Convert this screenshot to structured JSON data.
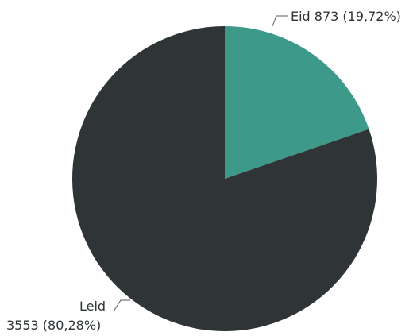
{
  "chart_data": {
    "type": "pie",
    "title": "",
    "slices": [
      {
        "label": "Eid",
        "value": 873,
        "percent_label": "19,72%",
        "display_text": "Eid 873 (19,72%)",
        "color": "#3d9a8b"
      },
      {
        "label": "Leid",
        "value": 3553,
        "percent_label": "80,28%",
        "display_line1": "Leid",
        "display_line2": "3553 (80,28%)",
        "color": "#2f3437"
      }
    ],
    "start_angle_deg": 0,
    "direction": "clockwise"
  }
}
